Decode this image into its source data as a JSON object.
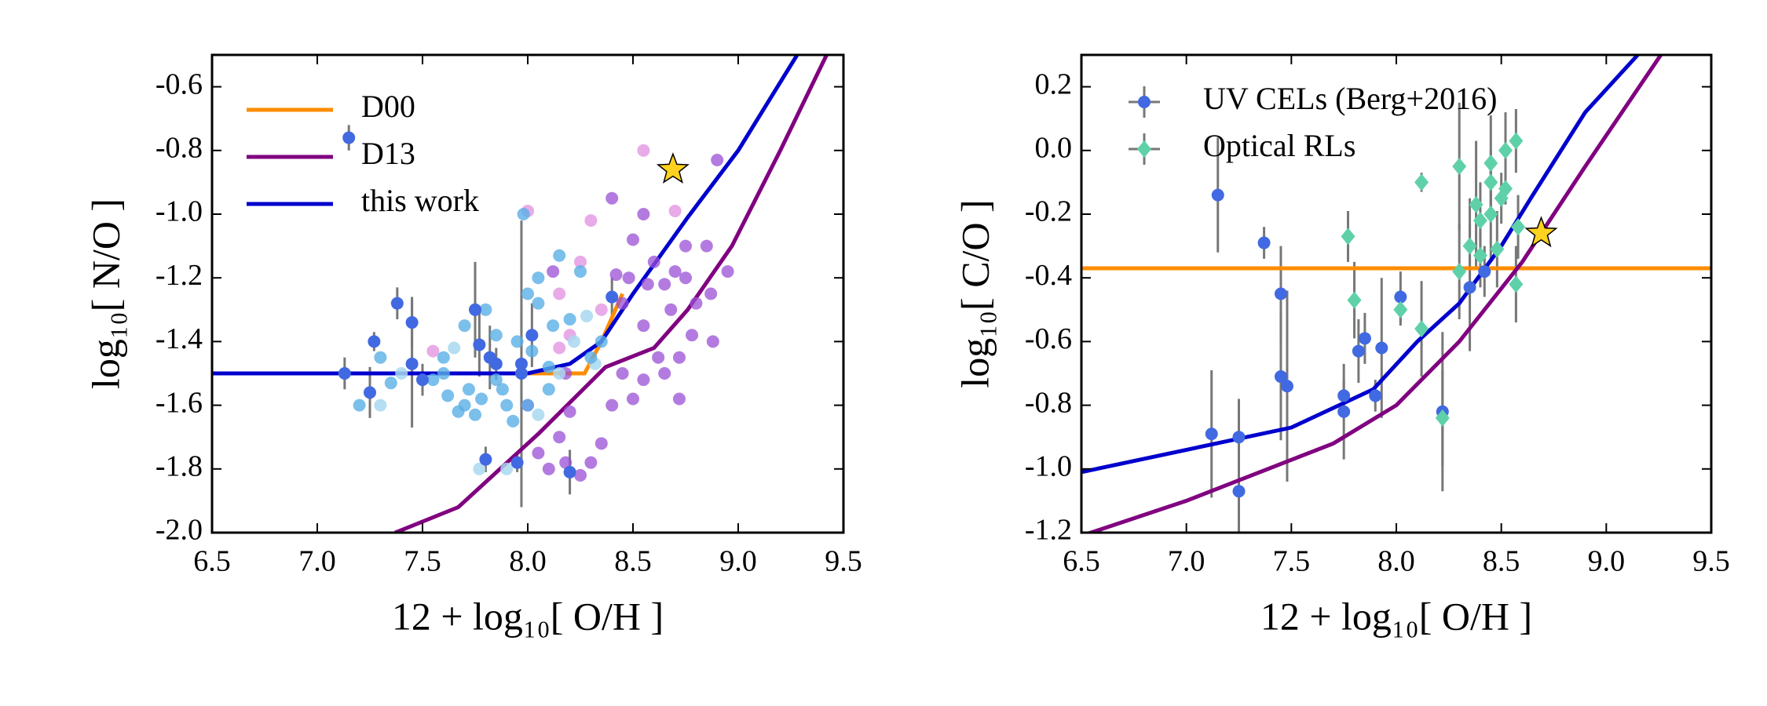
{
  "chart_data": [
    {
      "type": "scatter",
      "xlabel": "12 + log₁₀[ O/H ]",
      "ylabel": "log₁₀[ N/O ]",
      "xlim": [
        6.5,
        9.5
      ],
      "ylim": [
        -2.0,
        -0.5
      ],
      "xticks": [
        {
          "value": 6.5,
          "label": "6.5"
        },
        {
          "value": 7.0,
          "label": "7.0"
        },
        {
          "value": 7.5,
          "label": "7.5"
        },
        {
          "value": 8.0,
          "label": "8.0"
        },
        {
          "value": 8.5,
          "label": "8.5"
        },
        {
          "value": 9.0,
          "label": "9.0"
        },
        {
          "value": 9.5,
          "label": "9.5"
        }
      ],
      "yticks": [
        {
          "value": -2.0,
          "label": "-2.0"
        },
        {
          "value": -1.8,
          "label": "-1.8"
        },
        {
          "value": -1.6,
          "label": "-1.6"
        },
        {
          "value": -1.4,
          "label": "-1.4"
        },
        {
          "value": -1.2,
          "label": "-1.2"
        },
        {
          "value": -1.0,
          "label": "-1.0"
        },
        {
          "value": -0.8,
          "label": "-0.8"
        },
        {
          "value": -0.6,
          "label": "-0.6"
        }
      ],
      "legend": "upper left",
      "legend_source": "lines",
      "series": [
        {
          "color": "#9a4fd6",
          "marker": "circle",
          "alpha": 0.75,
          "x": [
            8.0,
            8.05,
            8.1,
            8.15,
            8.18,
            8.25,
            8.3,
            8.35,
            8.4,
            8.45,
            8.42,
            8.48,
            8.5,
            8.55,
            8.55,
            8.6,
            8.62,
            8.65,
            8.68,
            8.7,
            8.72,
            8.75,
            8.78,
            8.8,
            8.85,
            8.87,
            8.88,
            8.9,
            8.95,
            8.72,
            8.65,
            8.5,
            8.57,
            8.45,
            8.2,
            8.4,
            8.12,
            8.18,
            8.55,
            8.75
          ],
          "values": [
            -1.6,
            -1.75,
            -1.8,
            -1.7,
            -1.78,
            -1.82,
            -1.78,
            -1.72,
            -1.6,
            -1.5,
            -1.19,
            -1.2,
            -1.08,
            -1.35,
            -1.0,
            -1.15,
            -1.45,
            -1.22,
            -1.3,
            -1.18,
            -1.58,
            -1.2,
            -1.38,
            -1.28,
            -1.1,
            -1.25,
            -1.4,
            -0.83,
            -1.18,
            -1.45,
            -1.5,
            -1.58,
            -1.22,
            -1.28,
            -1.62,
            -0.95,
            -1.18,
            -1.5,
            -1.52,
            -1.1
          ]
        },
        {
          "color": "#e08fe0",
          "marker": "circle",
          "alpha": 0.75,
          "x": [
            7.55,
            8.0,
            8.15,
            8.2,
            8.25,
            8.35,
            8.55,
            8.7,
            8.3,
            8.15
          ],
          "values": [
            -1.43,
            -0.99,
            -1.25,
            -1.38,
            -1.15,
            -1.3,
            -0.8,
            -0.99,
            -1.02,
            -1.42
          ]
        },
        {
          "color": "#a8d8f0",
          "marker": "circle",
          "alpha": 0.85,
          "x": [
            7.3,
            7.4,
            7.77,
            7.9,
            8.05,
            8.15,
            8.28,
            8.32,
            7.65,
            8.22
          ],
          "values": [
            -1.6,
            -1.5,
            -1.8,
            -1.8,
            -1.63,
            -1.5,
            -1.32,
            -1.47,
            -1.42,
            -1.4
          ]
        },
        {
          "color": "#5aafe6",
          "marker": "circle",
          "alpha": 0.8,
          "x": [
            7.2,
            7.3,
            7.35,
            7.55,
            7.6,
            7.62,
            7.67,
            7.7,
            7.72,
            7.75,
            7.78,
            7.8,
            7.85,
            7.88,
            7.9,
            7.93,
            7.95,
            7.98,
            8.0,
            8.02,
            8.05,
            8.1,
            8.12,
            8.15,
            8.2,
            8.25,
            8.3,
            8.35,
            7.6,
            7.7,
            8.0,
            8.1,
            7.85,
            8.05
          ],
          "values": [
            -1.6,
            -1.45,
            -1.53,
            -1.52,
            -1.5,
            -1.57,
            -1.62,
            -1.6,
            -1.55,
            -1.63,
            -1.58,
            -1.3,
            -1.52,
            -1.55,
            -1.6,
            -1.65,
            -1.4,
            -1.0,
            -1.25,
            -1.43,
            -1.28,
            -1.48,
            -1.35,
            -1.13,
            -1.33,
            -1.18,
            -1.45,
            -1.4,
            -1.45,
            -1.35,
            -1.6,
            -1.55,
            -1.38,
            -1.2
          ]
        },
        {
          "color": "#4169e1",
          "marker": "circle",
          "alpha": 1,
          "errcolor": "#777777",
          "x": [
            7.15,
            7.13,
            7.25,
            7.27,
            7.38,
            7.45,
            7.45,
            7.5,
            7.75,
            7.77,
            7.82,
            7.85,
            7.95,
            7.97,
            8.02,
            8.2,
            8.4,
            7.8,
            7.97
          ],
          "values": [
            -0.76,
            -1.5,
            -1.56,
            -1.4,
            -1.28,
            -1.34,
            -1.47,
            -1.52,
            -1.3,
            -1.41,
            -1.45,
            -1.47,
            -1.78,
            -1.47,
            -1.38,
            -1.81,
            -1.26,
            -1.77,
            -1.5
          ],
          "yerr": [
            0.04,
            0.05,
            0.08,
            0.03,
            0.05,
            0.08,
            0.2,
            0.05,
            0.15,
            0.1,
            0.1,
            0.05,
            0.03,
            0.45,
            0.1,
            0.07,
            0.06,
            0.04,
            0.2
          ]
        },
        {
          "color": "#ffd21f",
          "marker": "star",
          "alpha": 1,
          "x": [
            8.69
          ],
          "values": [
            -0.86
          ]
        }
      ],
      "lines": [
        {
          "name": "D00",
          "color": "#ff8c00",
          "x": [
            6.5,
            8.27,
            8.35,
            8.45
          ],
          "values": [
            -1.5,
            -1.5,
            -1.4,
            -1.25
          ]
        },
        {
          "name": "D13",
          "color": "#800080",
          "x": [
            7.37,
            7.67,
            8.05,
            8.37,
            8.6,
            8.76,
            8.97,
            9.2,
            9.42
          ],
          "values": [
            -2.0,
            -1.92,
            -1.69,
            -1.48,
            -1.42,
            -1.3,
            -1.1,
            -0.8,
            -0.5
          ]
        },
        {
          "name": "this work",
          "color": "#0000cd",
          "x": [
            6.5,
            8.0,
            8.2,
            8.35,
            8.5,
            8.76,
            9.0,
            9.28
          ],
          "values": [
            -1.5,
            -1.5,
            -1.47,
            -1.4,
            -1.25,
            -1.01,
            -0.8,
            -0.5
          ]
        }
      ]
    },
    {
      "type": "scatter",
      "xlabel": "12 + log₁₀[ O/H ]",
      "ylabel": "log₁₀[ C/O ]",
      "xlim": [
        6.5,
        9.5
      ],
      "ylim": [
        -1.2,
        0.3
      ],
      "xticks": [
        {
          "value": 6.5,
          "label": "6.5"
        },
        {
          "value": 7.0,
          "label": "7.0"
        },
        {
          "value": 7.5,
          "label": "7.5"
        },
        {
          "value": 8.0,
          "label": "8.0"
        },
        {
          "value": 8.5,
          "label": "8.5"
        },
        {
          "value": 9.0,
          "label": "9.0"
        },
        {
          "value": 9.5,
          "label": "9.5"
        }
      ],
      "yticks": [
        {
          "value": -1.2,
          "label": "-1.2"
        },
        {
          "value": -1.0,
          "label": "-1.0"
        },
        {
          "value": -0.8,
          "label": "-0.8"
        },
        {
          "value": -0.6,
          "label": "-0.6"
        },
        {
          "value": -0.4,
          "label": "-0.4"
        },
        {
          "value": -0.2,
          "label": "-0.2"
        },
        {
          "value": 0.0,
          "label": "0.0"
        },
        {
          "value": 0.2,
          "label": "0.2"
        }
      ],
      "legend": "upper left",
      "legend_source": "series",
      "lines": [
        {
          "color": "#ff8c00",
          "x": [
            6.5,
            9.5
          ],
          "values": [
            -0.37,
            -0.37
          ]
        },
        {
          "color": "#800080",
          "x": [
            6.5,
            7.0,
            7.7,
            8.0,
            8.3,
            8.6,
            8.9,
            9.26
          ],
          "values": [
            -1.21,
            -1.1,
            -0.92,
            -0.8,
            -0.6,
            -0.35,
            -0.05,
            0.3
          ]
        },
        {
          "color": "#0000cd",
          "x": [
            6.5,
            7.5,
            7.89,
            8.1,
            8.3,
            8.5,
            8.65,
            8.9,
            9.15
          ],
          "values": [
            -1.01,
            -0.87,
            -0.75,
            -0.6,
            -0.48,
            -0.3,
            -0.14,
            0.12,
            0.3
          ]
        }
      ],
      "series": [
        {
          "name": "UV CELs (Berg+2016)",
          "color": "#4169e1",
          "marker": "circle",
          "alpha": 1,
          "errcolor": "#777777",
          "x": [
            7.15,
            7.37,
            7.45,
            7.45,
            7.48,
            7.12,
            7.25,
            7.25,
            7.75,
            7.75,
            7.82,
            7.85,
            7.93,
            7.9,
            8.02,
            8.22,
            8.35,
            8.42
          ],
          "values": [
            -0.14,
            -0.29,
            -0.45,
            -0.71,
            -0.74,
            -0.89,
            -0.9,
            -1.07,
            -0.77,
            -0.82,
            -0.63,
            -0.59,
            -0.62,
            -0.77,
            -0.46,
            -0.82,
            -0.43,
            -0.38
          ],
          "yerr": [
            0.18,
            0.05,
            0.15,
            0.2,
            0.3,
            0.2,
            0.12,
            0.25,
            0.05,
            0.15,
            0.1,
            0.08,
            0.22,
            0.05,
            0.08,
            0.25,
            0.2,
            0.08
          ]
        },
        {
          "name": "Optical RLs",
          "color": "#5fd1a8",
          "marker": "diamond",
          "alpha": 1,
          "errcolor": "#777777",
          "x": [
            8.12,
            8.3,
            8.57,
            8.52,
            8.45,
            8.38,
            8.45,
            8.4,
            8.5,
            8.58,
            8.35,
            8.4,
            8.48,
            7.77,
            7.8,
            8.02,
            8.12,
            8.3,
            8.57,
            8.22,
            8.45,
            8.52
          ],
          "values": [
            -0.1,
            -0.05,
            0.03,
            0.0,
            -0.04,
            -0.17,
            -0.2,
            -0.22,
            -0.15,
            -0.24,
            -0.3,
            -0.33,
            -0.31,
            -0.27,
            -0.47,
            -0.5,
            -0.56,
            -0.38,
            -0.42,
            -0.84,
            -0.1,
            -0.12
          ],
          "yerr": [
            0.03,
            0.2,
            0.1,
            0.12,
            0.15,
            0.2,
            0.15,
            0.12,
            0.08,
            0.1,
            0.15,
            0.1,
            0.12,
            0.08,
            0.12,
            0.05,
            0.15,
            0.15,
            0.12,
            0.15,
            0.1,
            0.05
          ]
        },
        {
          "color": "#ffd21f",
          "marker": "star",
          "alpha": 1,
          "x": [
            8.69
          ],
          "values": [
            -0.26
          ]
        }
      ]
    }
  ]
}
